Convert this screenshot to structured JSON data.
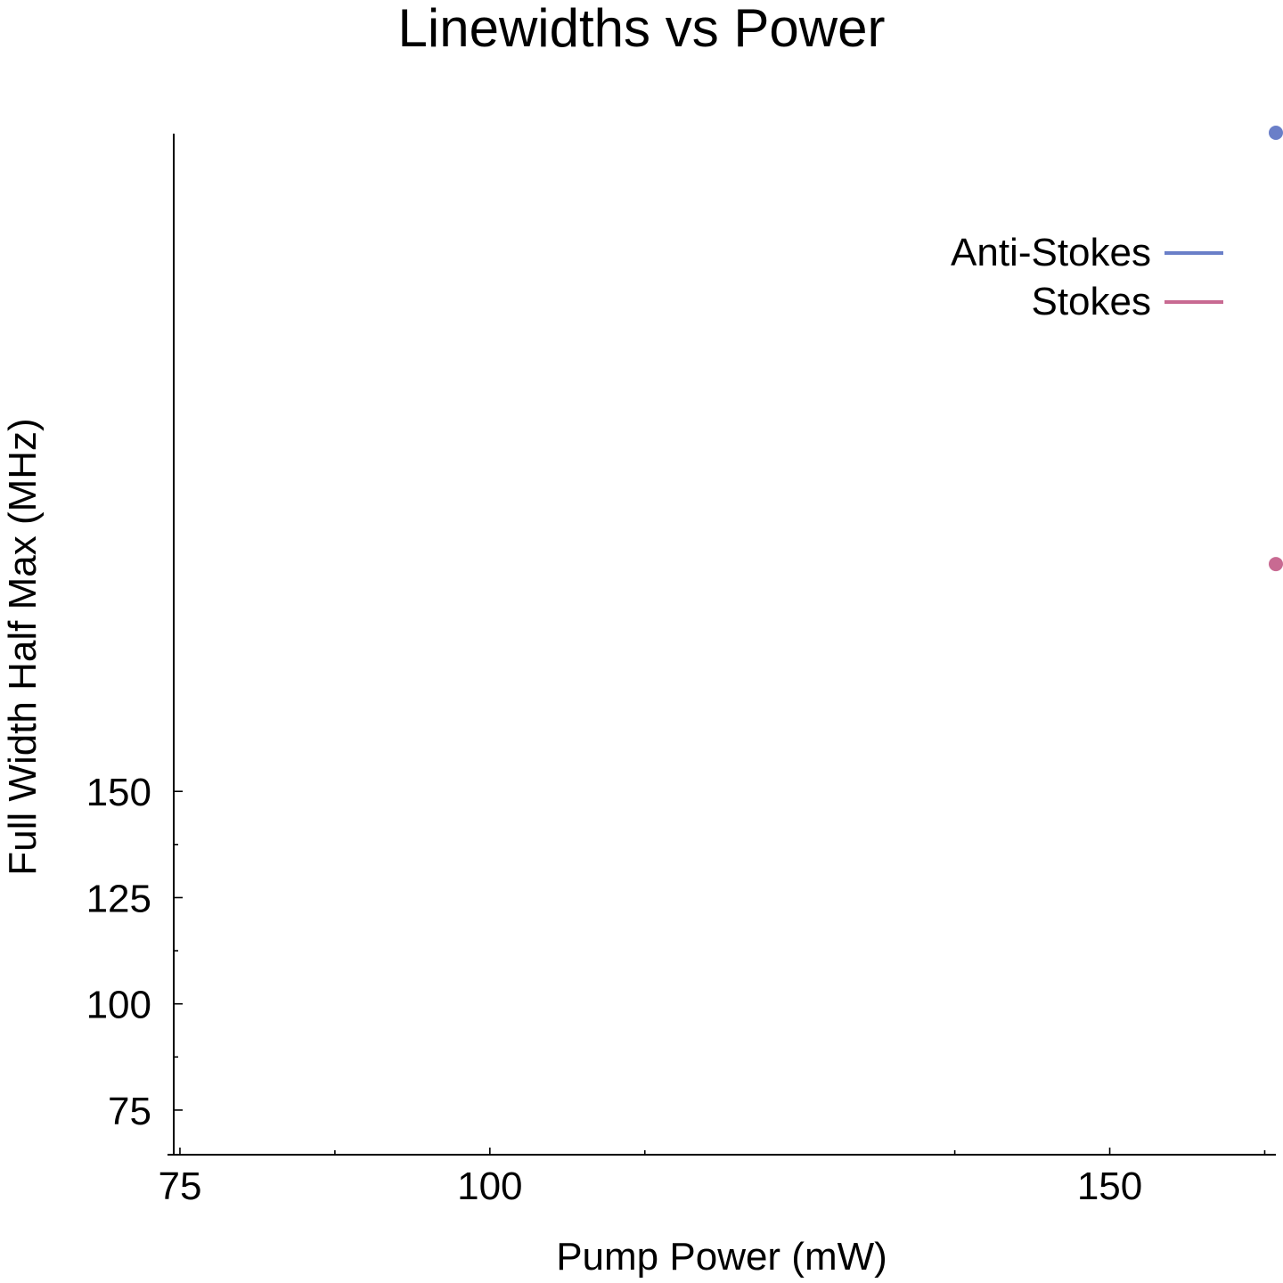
{
  "chart_data": {
    "type": "scatter",
    "title": "Linewidths vs Power",
    "xlabel": "Pump Power (mW)",
    "ylabel": "Full Width Half Max (MHz)",
    "xlim": [
      74.5,
      163.4
    ],
    "ylim": [
      64.5,
      305
    ],
    "x_ticks": [
      75,
      100,
      150
    ],
    "x_tick_labels": [
      "75",
      "100",
      "150"
    ],
    "x_minor_ticks": [
      87.5,
      112.5,
      137.5,
      162.5
    ],
    "y_ticks": [
      75,
      100,
      125,
      150
    ],
    "y_tick_labels": [
      "75",
      "100",
      "125",
      "150"
    ],
    "y_minor_ticks": [
      87.5,
      112.5,
      137.5
    ],
    "grid": false,
    "legend_position": "top-right",
    "series": [
      {
        "name": "Anti-Stokes",
        "color": "#6a7fc8",
        "points": [
          {
            "x": 163.4,
            "y": 305
          }
        ]
      },
      {
        "name": "Stokes",
        "color": "#c86a92",
        "points": [
          {
            "x": 163.4,
            "y": 203.5
          }
        ]
      }
    ]
  }
}
